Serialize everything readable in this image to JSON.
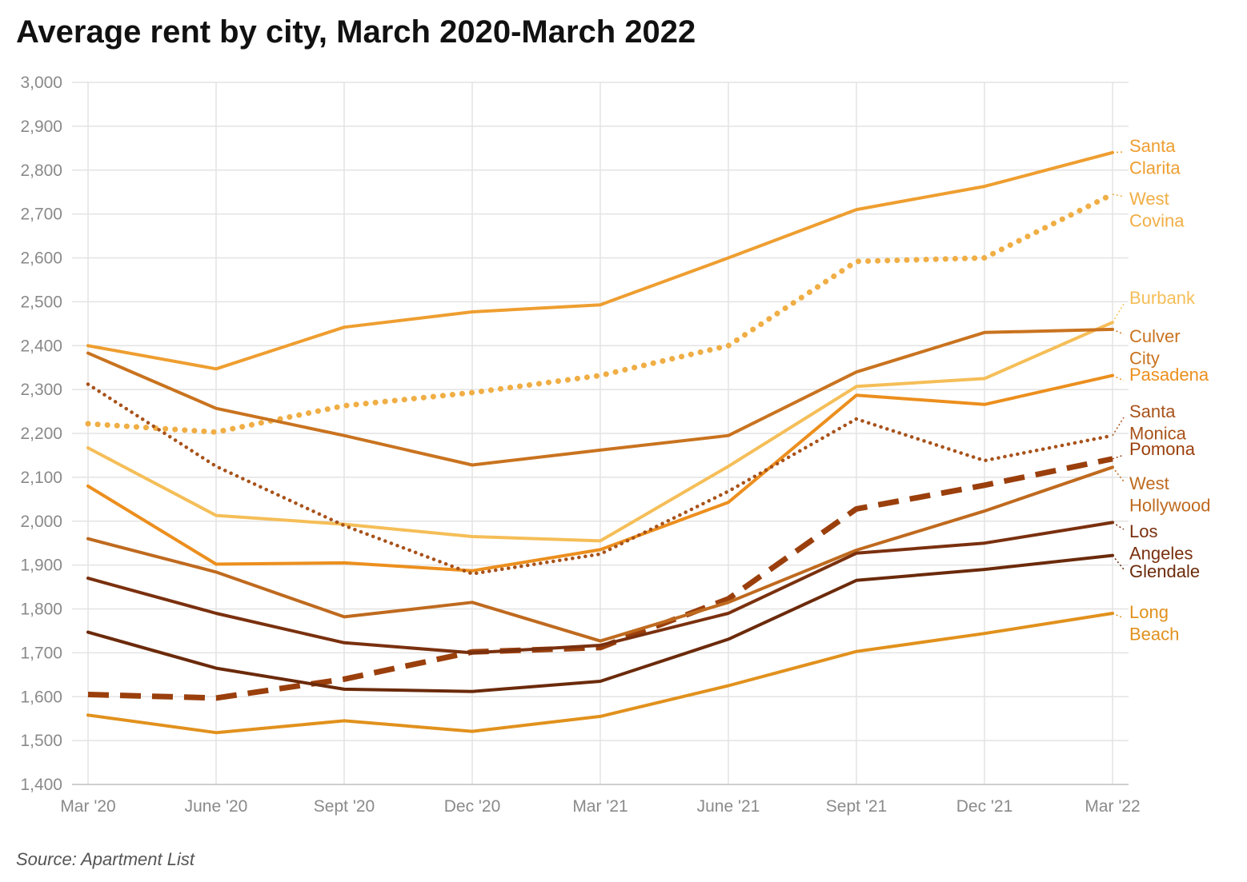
{
  "title": "Average rent by city, March 2020-March 2022",
  "source": "Source: Apartment List",
  "chart_data": {
    "type": "line",
    "x": [
      "Mar '20",
      "June '20",
      "Sept '20",
      "Dec '20",
      "Mar '21",
      "June '21",
      "Sept '21",
      "Dec '21",
      "Mar '22"
    ],
    "ylim": [
      1400,
      3000
    ],
    "yticks": [
      1400,
      1500,
      1600,
      1700,
      1800,
      1900,
      2000,
      2100,
      2200,
      2300,
      2400,
      2500,
      2600,
      2700,
      2800,
      2900,
      3000
    ],
    "ytick_labels": [
      "1,400",
      "1,500",
      "1,600",
      "1,700",
      "1,800",
      "1,900",
      "2,000",
      "2,100",
      "2,200",
      "2,300",
      "2,400",
      "2,500",
      "2,600",
      "2,700",
      "2,800",
      "2,900",
      "3,000"
    ],
    "grid": true,
    "legend": "direct labels at right end of lines",
    "series": [
      {
        "name": "Santa Clarita",
        "label_lines": [
          "Santa",
          "Clarita"
        ],
        "color": "#EE9E30",
        "style": "solid",
        "values": [
          2400,
          2347,
          2442,
          2477,
          2493,
          2600,
          2710,
          2763,
          2840
        ]
      },
      {
        "name": "West Covina",
        "label_lines": [
          "West",
          "Covina"
        ],
        "color": "#F0AE45",
        "style": "dotted",
        "values": [
          2222,
          2203,
          2263,
          2293,
          2332,
          2400,
          2592,
          2600,
          2745
        ]
      },
      {
        "name": "Burbank",
        "label_lines": [
          "Burbank"
        ],
        "color": "#F5BE58",
        "style": "solid",
        "values": [
          2167,
          2013,
          1993,
          1965,
          1955,
          2125,
          2307,
          2325,
          2453
        ]
      },
      {
        "name": "Culver City",
        "label_lines": [
          "Culver",
          "City"
        ],
        "color": "#C9731F",
        "style": "solid",
        "values": [
          2383,
          2257,
          2195,
          2128,
          2162,
          2195,
          2340,
          2430,
          2437
        ]
      },
      {
        "name": "Pasadena",
        "label_lines": [
          "Pasadena"
        ],
        "color": "#EC8F1E",
        "style": "solid",
        "values": [
          2080,
          1902,
          1905,
          1887,
          1935,
          2043,
          2287,
          2266,
          2332
        ]
      },
      {
        "name": "Santa Monica",
        "label_lines": [
          "Santa",
          "Monica"
        ],
        "color": "#A8521A",
        "style": "dotted",
        "values": [
          2312,
          2125,
          1990,
          1880,
          1925,
          2068,
          2233,
          2138,
          2195
        ]
      },
      {
        "name": "Pomona",
        "label_lines": [
          "Pomona"
        ],
        "color": "#9A3F0C",
        "style": "dashed",
        "values": [
          1605,
          1597,
          1640,
          1702,
          1712,
          1823,
          2028,
          2082,
          2142
        ]
      },
      {
        "name": "West Hollywood",
        "label_lines": [
          "West",
          "Hollywood"
        ],
        "color": "#BF6A1F",
        "style": "solid",
        "values": [
          1960,
          1884,
          1782,
          1815,
          1727,
          1815,
          1934,
          2023,
          2123
        ]
      },
      {
        "name": "Los Angeles",
        "label_lines": [
          "Los",
          "Angeles"
        ],
        "color": "#7A300E",
        "style": "solid",
        "values": [
          1870,
          1790,
          1723,
          1700,
          1717,
          1790,
          1927,
          1950,
          1997
        ]
      },
      {
        "name": "Glendale",
        "label_lines": [
          "Glendale"
        ],
        "color": "#6B2A0A",
        "style": "solid",
        "values": [
          1747,
          1665,
          1617,
          1612,
          1635,
          1731,
          1865,
          1890,
          1922
        ]
      },
      {
        "name": "Long Beach",
        "label_lines": [
          "Long",
          "Beach"
        ],
        "color": "#E1911D",
        "style": "solid",
        "values": [
          1558,
          1518,
          1545,
          1521,
          1555,
          1625,
          1703,
          1744,
          1790
        ]
      }
    ]
  }
}
